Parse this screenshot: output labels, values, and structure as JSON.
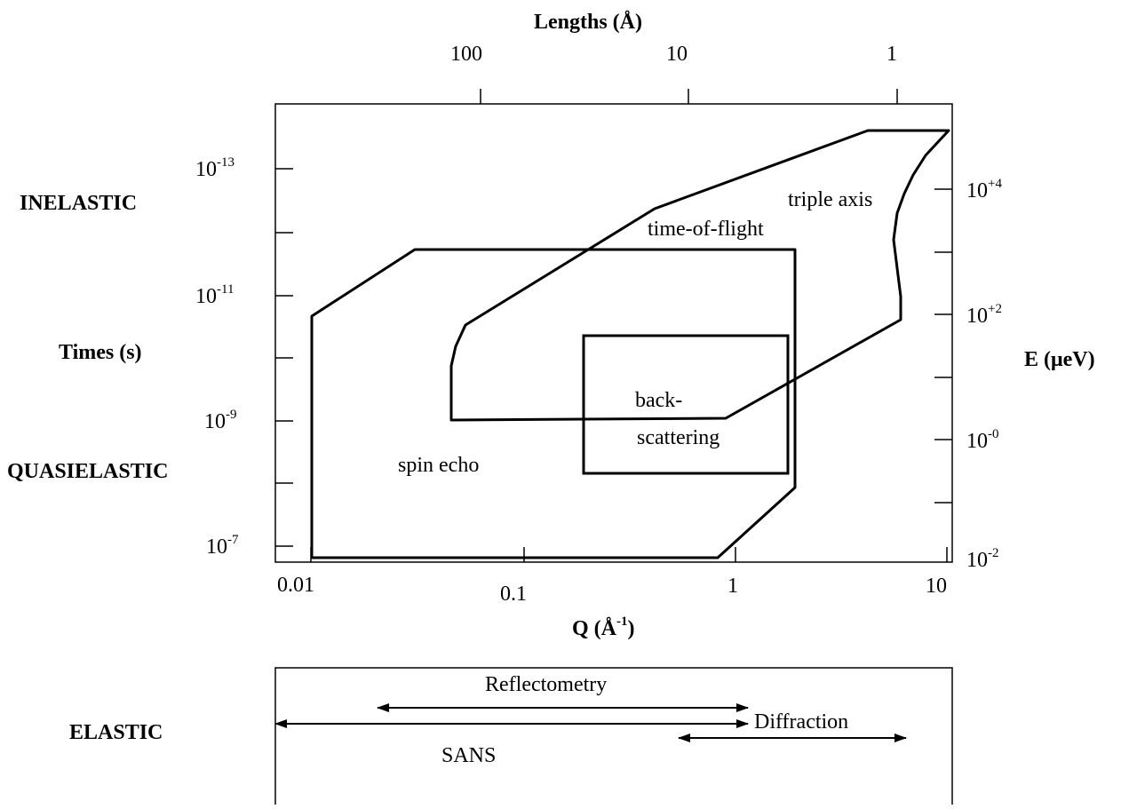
{
  "labels": {
    "top_axis_title": "Lengths (Å)",
    "bottom_axis_title": "Q (Å",
    "bottom_axis_title_sup": "-1",
    "bottom_axis_title_close": ")",
    "left_axis_title": "Times (s)",
    "right_axis_title": "E (μeV)",
    "inelastic": "INELASTIC",
    "quasielastic": "QUASIELASTIC",
    "elastic": "ELASTIC"
  },
  "top_ticks": [
    "100",
    "10",
    "1"
  ],
  "bottom_ticks": [
    "0.01",
    "0.1",
    "1",
    "10"
  ],
  "left_ticks": [
    {
      "base": "10",
      "exp": "-13"
    },
    {
      "base": "10",
      "exp": "-11"
    },
    {
      "base": "10",
      "exp": "-9"
    },
    {
      "base": "10",
      "exp": "-7"
    }
  ],
  "right_ticks": [
    {
      "base": "10",
      "exp": "+4"
    },
    {
      "base": "10",
      "exp": "+2"
    },
    {
      "base": "10",
      "exp": "-0"
    },
    {
      "base": "10",
      "exp": "-2"
    }
  ],
  "regions": {
    "triple_axis": "triple axis",
    "time_of_flight": "time-of-flight",
    "backscattering_line1": "back-",
    "backscattering_line2": "scattering",
    "spin_echo": "spin echo"
  },
  "elastic_techniques": {
    "reflectometry": "Reflectometry",
    "diffraction": "Diffraction",
    "sans": "SANS"
  }
}
